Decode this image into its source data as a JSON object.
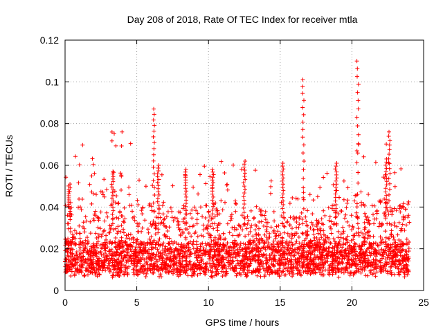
{
  "chart_data": {
    "type": "scatter",
    "title": "Day 208 of 2018, Rate Of TEC Index for receiver mtla",
    "xlabel": "GPS time / hours",
    "ylabel": "ROTI / TECUs",
    "xlim": [
      0,
      25
    ],
    "ylim": [
      0,
      0.12
    ],
    "x_ticks": [
      "0",
      "5",
      "10",
      "15",
      "20",
      "25"
    ],
    "y_ticks": [
      "0",
      "0.02",
      "0.04",
      "0.06",
      "0.08",
      "0.1",
      "0.12"
    ],
    "grid": true,
    "marker": "+",
    "marker_color": "#ff0000",
    "data_x_range": [
      0,
      24
    ],
    "baseline_band": {
      "low": 0.008,
      "high": 0.022
    },
    "notable_peaks": [
      {
        "x": 0.3,
        "y": 0.051
      },
      {
        "x": 3.3,
        "y": 0.057
      },
      {
        "x": 6.2,
        "y": 0.087
      },
      {
        "x": 6.5,
        "y": 0.06
      },
      {
        "x": 8.4,
        "y": 0.058
      },
      {
        "x": 10.3,
        "y": 0.058
      },
      {
        "x": 12.5,
        "y": 0.062
      },
      {
        "x": 15.2,
        "y": 0.061
      },
      {
        "x": 16.6,
        "y": 0.101
      },
      {
        "x": 18.9,
        "y": 0.061
      },
      {
        "x": 20.4,
        "y": 0.11
      },
      {
        "x": 22.4,
        "y": 0.063
      },
      {
        "x": 22.6,
        "y": 0.076
      }
    ]
  }
}
